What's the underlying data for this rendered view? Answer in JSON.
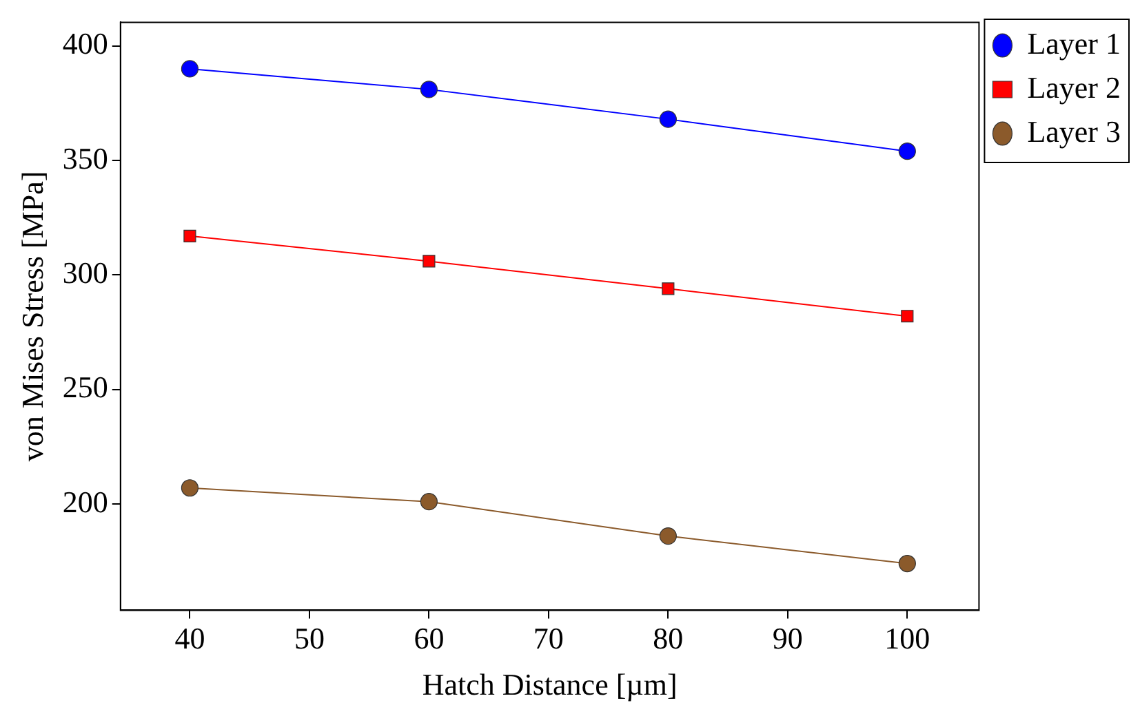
{
  "chart_data": {
    "type": "line",
    "xlabel": "Hatch Distance [µm]",
    "ylabel": "von Mises Stress [MPa]",
    "x": [
      40,
      60,
      80,
      100
    ],
    "xlim": [
      34.2,
      106
    ],
    "xticks": [
      40,
      50,
      60,
      70,
      80,
      90,
      100
    ],
    "ylim": [
      153.6,
      410.3
    ],
    "yticks": [
      200,
      250,
      300,
      350,
      400
    ],
    "grid": false,
    "legend": "top right",
    "series": [
      {
        "name": "Layer 1",
        "color": "#0000ff",
        "marker": "circle",
        "values": [
          390,
          381,
          368,
          354
        ]
      },
      {
        "name": "Layer 2",
        "color": "#ff0000",
        "marker": "square",
        "values": [
          317,
          306,
          294,
          282
        ]
      },
      {
        "name": "Layer 3",
        "color": "#8b5a2b",
        "marker": "circle",
        "values": [
          207,
          201,
          186,
          174
        ]
      }
    ]
  }
}
